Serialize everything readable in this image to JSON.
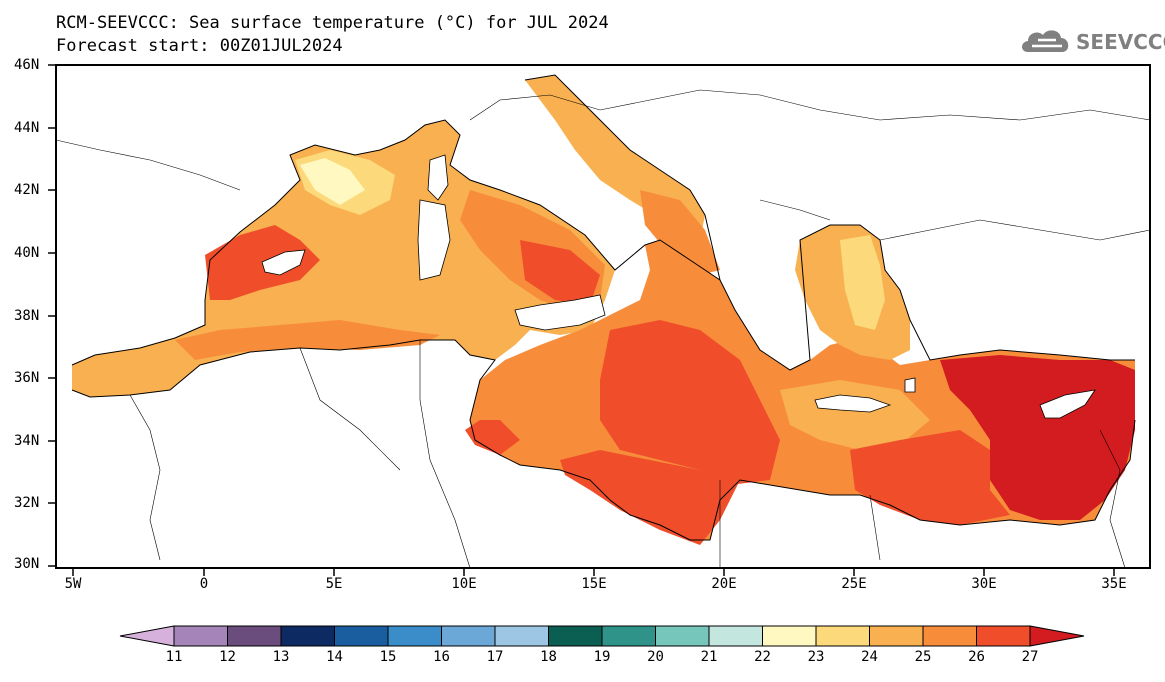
{
  "title_line1": "RCM-SEEVCCC: Sea surface temperature (°C) for JUL 2024",
  "title_line2": "Forecast start: 00Z01JUL2024",
  "logo": {
    "text": "SEEVCCC",
    "icon": "cloud-icon",
    "color": "#808080"
  },
  "map": {
    "lon_range": [
      -5.5,
      36.5
    ],
    "lat_range": [
      30,
      46
    ],
    "lat_ticks": [
      "46N",
      "44N",
      "42N",
      "40N",
      "38N",
      "36N",
      "34N",
      "32N",
      "30N"
    ],
    "lon_ticks": [
      "5W",
      "0",
      "5E",
      "10E",
      "15E",
      "20E",
      "25E",
      "30E",
      "35E"
    ],
    "land_color": "#ffffff",
    "coastline_color": "#000000"
  },
  "colorbar": {
    "labels": [
      "11",
      "12",
      "13",
      "14",
      "15",
      "16",
      "17",
      "18",
      "19",
      "20",
      "21",
      "22",
      "23",
      "24",
      "25",
      "26",
      "27"
    ],
    "colors": [
      "#d6b1db",
      "#a584b9",
      "#6a4d7c",
      "#0d2b62",
      "#1a5e9f",
      "#3a8dc8",
      "#6ba8d8",
      "#9cc6e3",
      "#0b5e52",
      "#2f938a",
      "#76c6bb",
      "#c3e6df",
      "#fff8c0",
      "#fcd97a",
      "#f8b050",
      "#f78d3b",
      "#f04e2a",
      "#d21c1f"
    ]
  }
}
